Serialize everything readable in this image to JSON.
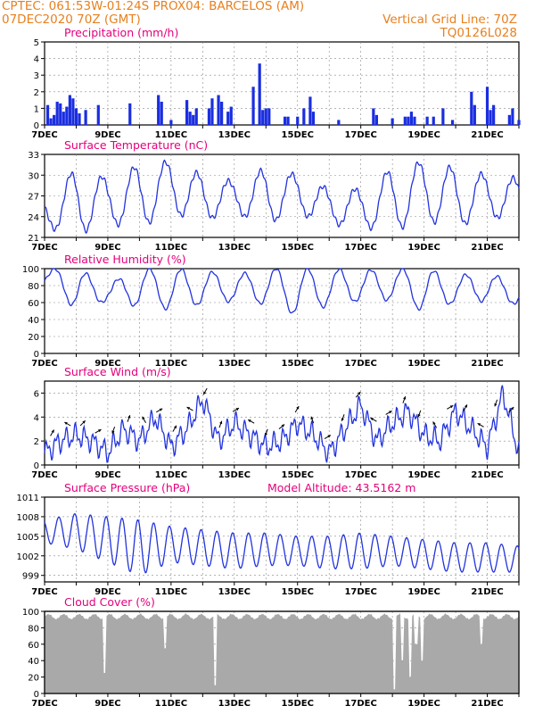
{
  "header": {
    "line1": "CPTEC:   061:53W-01:24S   PROX04: BARCELOS (AM)",
    "date": "07DEC2020 70Z (GMT)",
    "vertical_grid": "Vertical Grid Line: 70Z",
    "code": "TQ0126L028"
  },
  "colors": {
    "header": "#e8801e",
    "panel_title": "#e4007c",
    "series": "#2233dd",
    "bars": "#1a2ee0",
    "cloud": "#a9a9a9",
    "grid": "#888888"
  },
  "chart_data": [
    {
      "type": "bar",
      "title": "Precipitation (mm/h)",
      "ylim": [
        0,
        5
      ],
      "yticks": [
        0,
        1,
        2,
        3,
        4,
        5
      ],
      "xlim": [
        0,
        15
      ],
      "xtick_labels": [
        "7DEC",
        "9DEC",
        "11DEC",
        "13DEC",
        "15DEC",
        "17DEC",
        "19DEC",
        "21DEC"
      ],
      "grid": true,
      "events": [
        {
          "day": 0.1,
          "value": 1.2
        },
        {
          "day": 0.2,
          "value": 0.4
        },
        {
          "day": 0.3,
          "value": 0.6
        },
        {
          "day": 0.4,
          "value": 1.4
        },
        {
          "day": 0.5,
          "value": 1.3
        },
        {
          "day": 0.6,
          "value": 0.8
        },
        {
          "day": 0.7,
          "value": 1.1
        },
        {
          "day": 0.8,
          "value": 1.8
        },
        {
          "day": 0.9,
          "value": 1.6
        },
        {
          "day": 1.0,
          "value": 1.0
        },
        {
          "day": 1.1,
          "value": 0.7
        },
        {
          "day": 1.3,
          "value": 0.9
        },
        {
          "day": 1.7,
          "value": 1.2
        },
        {
          "day": 2.7,
          "value": 1.3
        },
        {
          "day": 3.6,
          "value": 1.8
        },
        {
          "day": 3.7,
          "value": 1.4
        },
        {
          "day": 4.0,
          "value": 0.3
        },
        {
          "day": 4.5,
          "value": 1.5
        },
        {
          "day": 4.6,
          "value": 0.8
        },
        {
          "day": 4.7,
          "value": 0.6
        },
        {
          "day": 4.8,
          "value": 1.0
        },
        {
          "day": 5.2,
          "value": 1.0
        },
        {
          "day": 5.3,
          "value": 1.6
        },
        {
          "day": 5.5,
          "value": 1.8
        },
        {
          "day": 5.6,
          "value": 1.4
        },
        {
          "day": 5.8,
          "value": 0.8
        },
        {
          "day": 5.9,
          "value": 1.1
        },
        {
          "day": 6.6,
          "value": 2.3
        },
        {
          "day": 6.8,
          "value": 3.7
        },
        {
          "day": 6.9,
          "value": 0.9
        },
        {
          "day": 7.0,
          "value": 1.0
        },
        {
          "day": 7.1,
          "value": 1.0
        },
        {
          "day": 7.6,
          "value": 0.5
        },
        {
          "day": 7.7,
          "value": 0.5
        },
        {
          "day": 8.0,
          "value": 0.5
        },
        {
          "day": 8.2,
          "value": 1.0
        },
        {
          "day": 8.4,
          "value": 1.7
        },
        {
          "day": 8.5,
          "value": 0.8
        },
        {
          "day": 9.3,
          "value": 0.3
        },
        {
          "day": 10.4,
          "value": 1.0
        },
        {
          "day": 10.5,
          "value": 0.6
        },
        {
          "day": 11.0,
          "value": 0.4
        },
        {
          "day": 11.4,
          "value": 0.5
        },
        {
          "day": 11.5,
          "value": 0.5
        },
        {
          "day": 11.6,
          "value": 0.8
        },
        {
          "day": 11.7,
          "value": 0.5
        },
        {
          "day": 12.1,
          "value": 0.5
        },
        {
          "day": 12.3,
          "value": 0.5
        },
        {
          "day": 12.6,
          "value": 1.0
        },
        {
          "day": 12.9,
          "value": 0.3
        },
        {
          "day": 13.5,
          "value": 2.0
        },
        {
          "day": 13.6,
          "value": 1.2
        },
        {
          "day": 14.0,
          "value": 2.3
        },
        {
          "day": 14.1,
          "value": 0.9
        },
        {
          "day": 14.2,
          "value": 1.2
        },
        {
          "day": 14.7,
          "value": 0.6
        },
        {
          "day": 14.8,
          "value": 1.0
        },
        {
          "day": 15.0,
          "value": 0.3
        }
      ]
    },
    {
      "type": "line",
      "title": "Surface Temperature (nC)",
      "ylim": [
        21,
        33
      ],
      "yticks": [
        21,
        24,
        27,
        30,
        33
      ],
      "xlim": [
        0,
        15
      ],
      "xtick_labels": [
        "7DEC",
        "9DEC",
        "11DEC",
        "13DEC",
        "15DEC",
        "17DEC",
        "19DEC",
        "21DEC"
      ],
      "grid": true,
      "daily_min": [
        22.5,
        21.5,
        23.0,
        22.5,
        24.5,
        23.5,
        24.5,
        23.0,
        24.5,
        23.0,
        22.5,
        22.0,
        23.5,
        22.5,
        24.0,
        23.5
      ],
      "daily_max": [
        26.5,
        31.0,
        29.5,
        31.5,
        32.0,
        30.0,
        29.0,
        31.0,
        30.0,
        28.0,
        28.0,
        31.0,
        32.0,
        31.0,
        30.0,
        29.5
      ]
    },
    {
      "type": "line",
      "title": "Relative Humidity (%)",
      "ylim": [
        0,
        100
      ],
      "yticks": [
        0,
        20,
        40,
        60,
        80,
        100
      ],
      "xlim": [
        0,
        15
      ],
      "xtick_labels": [
        "7DEC",
        "9DEC",
        "11DEC",
        "13DEC",
        "15DEC",
        "17DEC",
        "19DEC",
        "21DEC"
      ],
      "grid": true,
      "daily_max": [
        100,
        100,
        82,
        100,
        100,
        98,
        92,
        100,
        100,
        100,
        98,
        100,
        100,
        92,
        95,
        82
      ],
      "daily_min": [
        80,
        53,
        62,
        55,
        52,
        58,
        62,
        58,
        45,
        57,
        62,
        63,
        50,
        60,
        62,
        58
      ]
    },
    {
      "type": "line",
      "title": "Surface Wind (m/s)",
      "ylim": [
        0,
        7
      ],
      "yticks": [
        0,
        2,
        4,
        6
      ],
      "xlim": [
        0,
        15
      ],
      "xtick_labels": [
        "7DEC",
        "9DEC",
        "11DEC",
        "13DEC",
        "15DEC",
        "17DEC",
        "19DEC",
        "21DEC"
      ],
      "grid": true,
      "speed": [
        1.0,
        2.0,
        2.5,
        2.0,
        1.0,
        3.0,
        2.0,
        4.0,
        1.5,
        3.0,
        5.5,
        2.0,
        3.5,
        2.5,
        1.5,
        2.0,
        3.5,
        2.5,
        1.0,
        3.0,
        5.0,
        2.0,
        3.5,
        4.5,
        2.5,
        2.0,
        4.5,
        3.0,
        1.5,
        6.0,
        1.0
      ],
      "arrows_deg": [
        30,
        300,
        45,
        60,
        200,
        20,
        330,
        60,
        30,
        300,
        210,
        20,
        60,
        300,
        200,
        50,
        30,
        340,
        60,
        200,
        40,
        300,
        60,
        20,
        200,
        330,
        60,
        30,
        300,
        200,
        45
      ]
    },
    {
      "type": "line",
      "title": "Surface Pressure (hPa)",
      "annotation": "Model Altitude: 43.5162 m",
      "ylim": [
        998,
        1011
      ],
      "yticks": [
        999,
        1002,
        1005,
        1008,
        1011
      ],
      "xlim": [
        0,
        15
      ],
      "xtick_labels": [
        "7DEC",
        "9DEC",
        "11DEC",
        "13DEC",
        "15DEC",
        "17DEC",
        "19DEC",
        "21DEC"
      ],
      "grid": true,
      "semidiurnal_max": [
        1007.5,
        1008.5,
        1008.0,
        1007.5,
        1006.5,
        1006.0,
        1005.5,
        1005.5,
        1005.0,
        1005.0,
        1005.5,
        1005.0,
        1004.5,
        1004.0,
        1004.0,
        1003.5
      ],
      "semidiurnal_min": [
        1004.0,
        1003.0,
        1001.0,
        999.0,
        1001.0,
        1000.5,
        1000.0,
        1000.5,
        1000.5,
        1000.0,
        1000.0,
        1000.5,
        1000.0,
        999.5,
        999.5,
        999.5
      ]
    },
    {
      "type": "area",
      "title": "Cloud Cover (%)",
      "ylim": [
        0,
        100
      ],
      "yticks": [
        0,
        20,
        40,
        60,
        80,
        100
      ],
      "xlim": [
        0,
        15
      ],
      "xtick_labels": [
        "7DEC",
        "9DEC",
        "11DEC",
        "13DEC",
        "15DEC",
        "17DEC",
        "19DEC",
        "21DEC"
      ],
      "grid": true,
      "typical_value": 95,
      "dips": [
        {
          "day": 1.9,
          "value": 25
        },
        {
          "day": 3.8,
          "value": 55
        },
        {
          "day": 5.4,
          "value": 10
        },
        {
          "day": 11.05,
          "value": 5
        },
        {
          "day": 11.3,
          "value": 40
        },
        {
          "day": 11.55,
          "value": 20
        },
        {
          "day": 11.75,
          "value": 60
        },
        {
          "day": 11.95,
          "value": 40
        },
        {
          "day": 13.8,
          "value": 60
        }
      ]
    }
  ]
}
